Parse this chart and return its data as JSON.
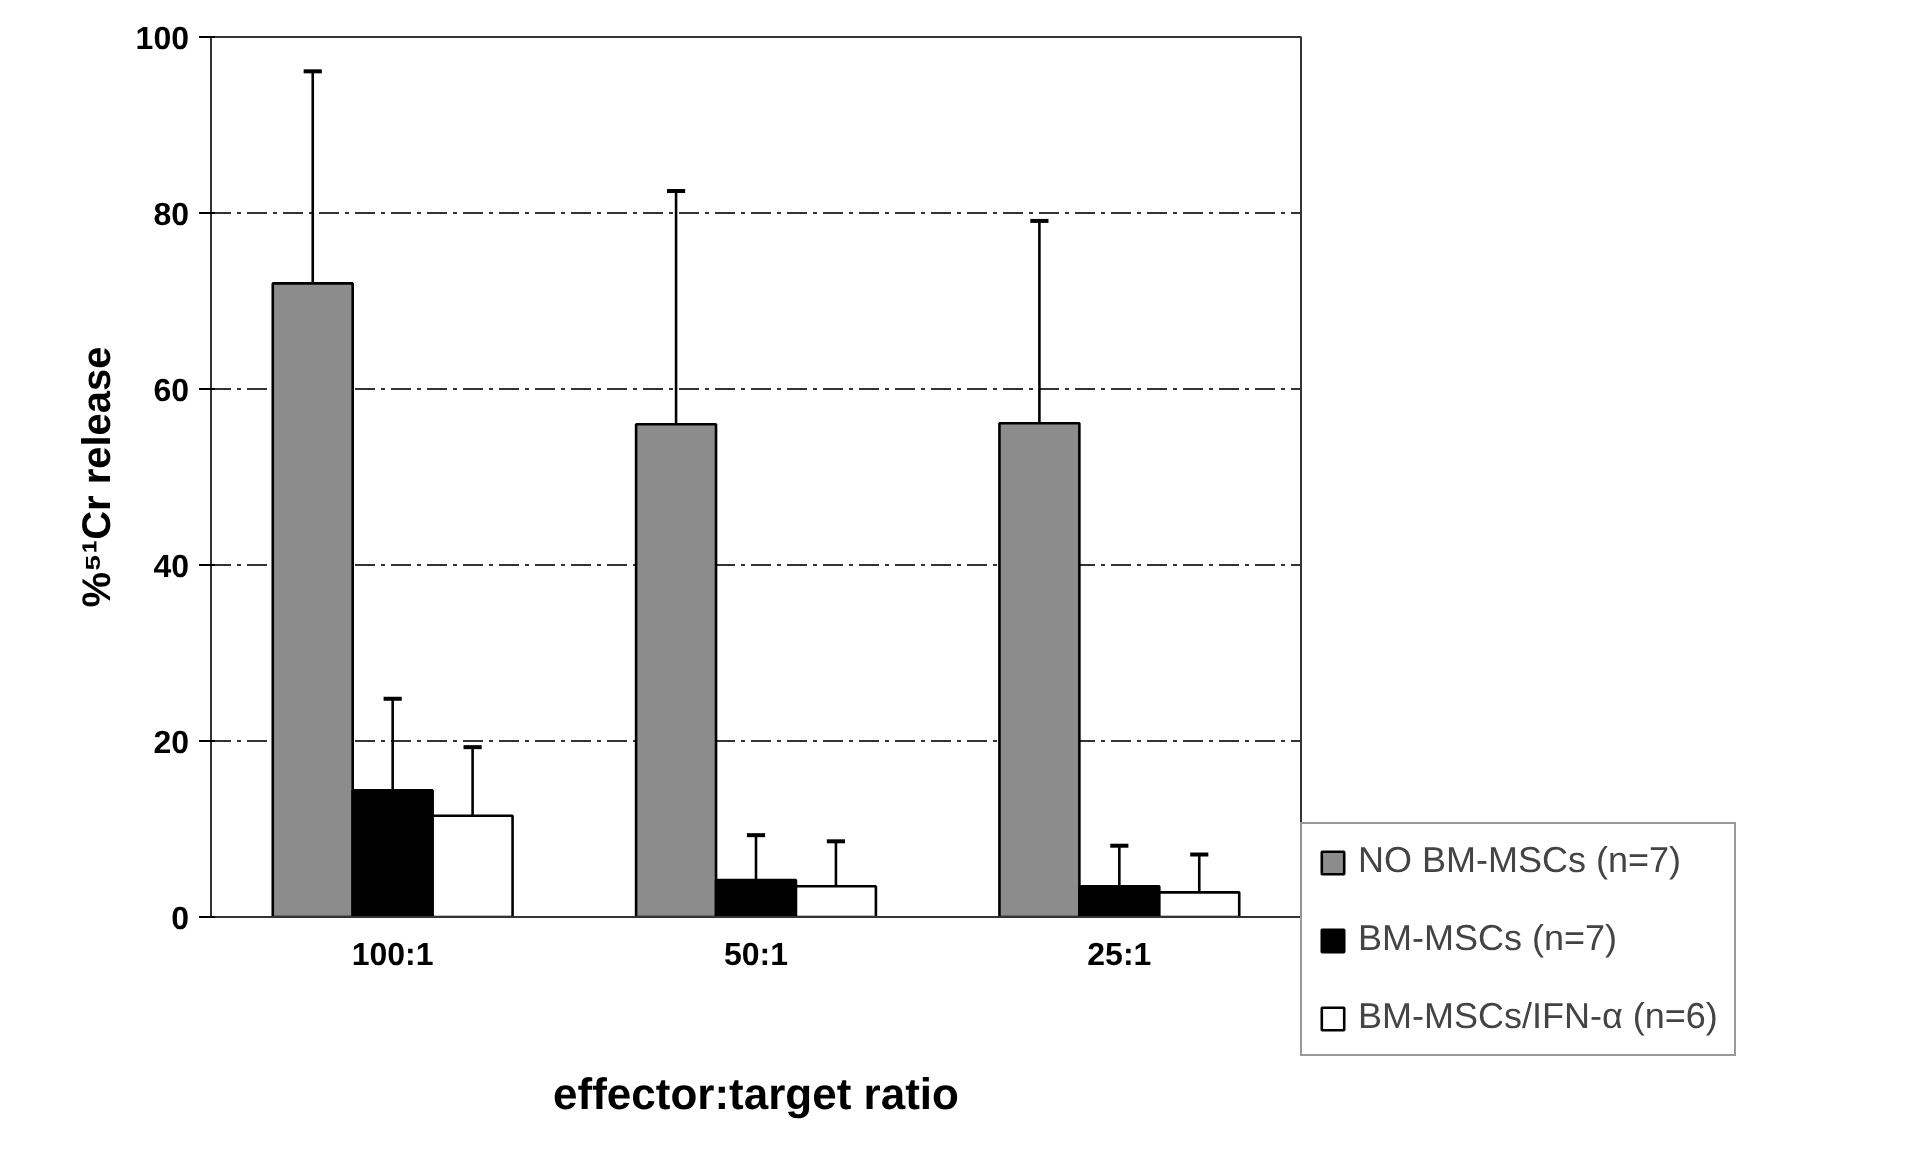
{
  "chart_data": {
    "type": "bar",
    "xlabel": "effector:target ratio",
    "ylabel": "%⁵¹Cr release",
    "categories": [
      "100:1",
      "50:1",
      "25:1"
    ],
    "ylim": [
      0,
      100
    ],
    "yticks": [
      0,
      20,
      40,
      60,
      80,
      100
    ],
    "grid": "y",
    "legend": "right",
    "series": [
      {
        "name": "NO BM-MSCs (n=7)",
        "color": "#8c8c8c",
        "values": [
          72,
          56,
          56.1
        ],
        "errors": [
          [
            72,
            96.1
          ],
          [
            56,
            82.5
          ],
          [
            56.1,
            79.1
          ]
        ]
      },
      {
        "name": "BM-MSCs (n=7)",
        "color": "#000000",
        "values": [
          14.4,
          4.2,
          3.5
        ],
        "errors": [
          [
            14.4,
            24.8
          ],
          [
            4.2,
            9.3
          ],
          [
            3.5,
            8.1
          ]
        ]
      },
      {
        "name": "BM-MSCs/IFN-α (n=6)",
        "color": "#ffffff",
        "values": [
          11.5,
          3.5,
          2.8
        ],
        "errors": [
          [
            11.5,
            19.3
          ],
          [
            3.5,
            8.6
          ],
          [
            2.8,
            7.1
          ]
        ]
      }
    ]
  }
}
